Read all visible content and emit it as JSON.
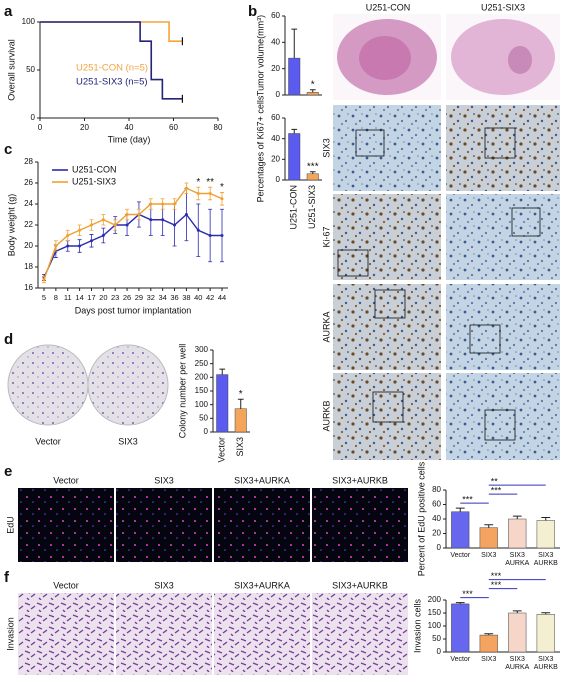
{
  "panel_letters": [
    "a",
    "b",
    "c",
    "d",
    "e",
    "f"
  ],
  "tumor_images": {
    "columns": [
      "U251-CON",
      "U251-SIX3"
    ],
    "rows": [
      "SIX3",
      "Ki-67",
      "AURKA",
      "AURKB"
    ]
  },
  "colony_images": {
    "labels": [
      "Vector",
      "SIX3"
    ]
  },
  "edu_images": {
    "columns": [
      "Vector",
      "SIX3",
      "SIX3+AURKA",
      "SIX3+AURKB"
    ],
    "row": "EdU"
  },
  "invasion_images": {
    "columns": [
      "Vector",
      "SIX3",
      "SIX3+AURKA",
      "SIX3+AURKB"
    ],
    "row": "Invasion"
  },
  "chart_data": [
    {
      "type": "step",
      "ylabel": "Overall survival",
      "xlabel": "Time (day)",
      "xlim": [
        0,
        80
      ],
      "xticks": [
        0,
        20,
        40,
        60,
        80
      ],
      "ylim": [
        0,
        100
      ],
      "yticks": [
        0,
        50,
        100
      ],
      "series": [
        {
          "name": "U251-CON (n=5)",
          "color": "#f4a340",
          "x": [
            0,
            58,
            58,
            64
          ],
          "values": [
            100,
            100,
            80,
            80
          ]
        },
        {
          "name": "U251-SIX3 (n=5)",
          "color": "#23237a",
          "x": [
            0,
            45,
            45,
            50,
            50,
            55,
            55,
            64
          ],
          "values": [
            100,
            100,
            80,
            80,
            40,
            40,
            20,
            20
          ]
        }
      ]
    },
    {
      "type": "bar",
      "ylabel": "Tumor volume(mm³)",
      "categories": [
        null,
        null
      ],
      "values": [
        28,
        2
      ],
      "errors": [
        22,
        2
      ],
      "colors": [
        "#5b5bf0",
        "#f5a55a"
      ],
      "ylim": [
        0,
        60
      ],
      "yticks": [
        0,
        20,
        40,
        60
      ],
      "annotations": [
        {
          "text": "*",
          "category": 1
        }
      ]
    },
    {
      "type": "bar",
      "ylabel": "Percentages of Ki67+ cells",
      "categories": [
        "U251-CON",
        "U251-SIX3"
      ],
      "values": [
        45,
        6
      ],
      "errors": [
        4,
        2
      ],
      "colors": [
        "#5b5bf0",
        "#f5a55a"
      ],
      "ylim": [
        0,
        60
      ],
      "yticks": [
        0,
        20,
        40,
        60
      ],
      "annotations": [
        {
          "text": "***",
          "category": 1
        }
      ]
    },
    {
      "type": "line",
      "ylabel": "Body weight (g)",
      "xlabel": "Days post tumor implantation",
      "categories": [
        "5",
        "8",
        "11",
        "14",
        "17",
        "20",
        "23",
        "26",
        "29",
        "32",
        "34",
        "36",
        "38",
        "40",
        "42",
        "44"
      ],
      "ylim": [
        16,
        28
      ],
      "yticks": [
        16,
        18,
        20,
        22,
        24,
        26,
        28
      ],
      "series": [
        {
          "name": "U251-CON",
          "color": "#2b2bb0",
          "values": [
            17,
            19.5,
            20,
            20,
            20.5,
            21,
            22,
            22,
            23,
            22.5,
            22.5,
            22,
            23,
            21.5,
            21,
            21
          ],
          "errors": [
            0.3,
            0.6,
            0.5,
            0.6,
            0.6,
            0.7,
            0.8,
            1,
            1.2,
            1.5,
            1.5,
            2,
            2.5,
            2.5,
            2.5,
            2.5
          ]
        },
        {
          "name": "U251-SIX3",
          "color": "#f0a030",
          "values": [
            16.8,
            20,
            21,
            21.5,
            22,
            22.5,
            22,
            23,
            23,
            24,
            24,
            24,
            25.5,
            25,
            25,
            24.5
          ],
          "errors": [
            0.3,
            0.5,
            0.5,
            0.5,
            0.5,
            0.5,
            0.5,
            0.5,
            0.5,
            0.5,
            0.5,
            0.5,
            0.5,
            0.6,
            0.6,
            0.6
          ]
        }
      ],
      "annotations": [
        {
          "text": "*",
          "category": 13
        },
        {
          "text": "**",
          "category": 14
        },
        {
          "text": "*",
          "category": 15
        }
      ]
    },
    {
      "type": "bar",
      "ylabel": "Colony number per well",
      "categories": [
        "Vector",
        "SIX3"
      ],
      "values": [
        210,
        85
      ],
      "errors": [
        20,
        35
      ],
      "colors": [
        "#5b5bf0",
        "#f5a55a"
      ],
      "ylim": [
        0,
        300
      ],
      "yticks": [
        0,
        50,
        100,
        150,
        200,
        250,
        300
      ],
      "annotations": [
        {
          "text": "*",
          "category": 1
        }
      ]
    },
    {
      "type": "bar",
      "ylabel": "Percent of EdU positive cells",
      "categories": [
        "Vector",
        "SIX3",
        "SIX3 AURKA",
        "SIX3 AURKB"
      ],
      "values": [
        50,
        28,
        40,
        38
      ],
      "errors": [
        5,
        4,
        4,
        4
      ],
      "colors": [
        "#6666ee",
        "#f4a460",
        "#f6d6c8",
        "#f3efd0"
      ],
      "ylim": [
        0,
        80
      ],
      "yticks": [
        0,
        20,
        40,
        60,
        80
      ],
      "comparisons": [
        {
          "from": 0,
          "to": 1,
          "text": "***"
        },
        {
          "from": 1,
          "to": 2,
          "text": "***"
        },
        {
          "from": 1,
          "to": 3,
          "text": "**"
        }
      ]
    },
    {
      "type": "bar",
      "ylabel": "Invasion cells",
      "categories": [
        "Vector",
        "SIX3",
        "SIX3 AURKA",
        "SIX3 AURKB"
      ],
      "values": [
        185,
        65,
        150,
        145
      ],
      "errors": [
        5,
        5,
        8,
        6
      ],
      "colors": [
        "#6666ee",
        "#f4a460",
        "#f6d6c8",
        "#f3efd0"
      ],
      "ylim": [
        0,
        200
      ],
      "yticks": [
        0,
        50,
        100,
        150,
        200
      ],
      "comparisons": [
        {
          "from": 0,
          "to": 1,
          "text": "***"
        },
        {
          "from": 1,
          "to": 2,
          "text": "***"
        },
        {
          "from": 1,
          "to": 3,
          "text": "***"
        }
      ]
    }
  ]
}
